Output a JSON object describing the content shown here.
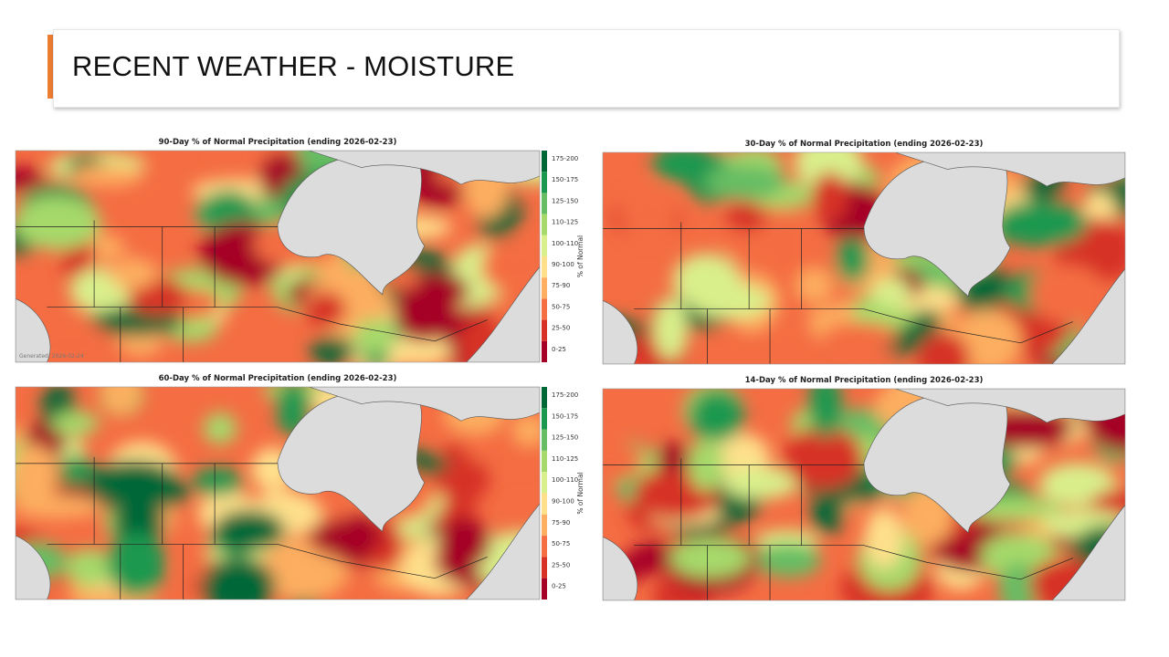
{
  "header": {
    "title": "RECENT WEATHER - MOISTURE"
  },
  "maps": [
    {
      "title": "90-Day % of Normal Precipitation (ending 2026-02-23)",
      "generated": "Generated: 2026-02-24"
    },
    {
      "title": "30-Day % of Normal Precipitation (ending 2026-02-23)"
    },
    {
      "title": "60-Day % of Normal Precipitation (ending 2026-02-23)"
    },
    {
      "title": "14-Day % of Normal Precipitation (ending 2026-02-23)"
    }
  ],
  "legend": {
    "label": "% of Normal",
    "classes": [
      {
        "label": "175-200",
        "color": "#006837"
      },
      {
        "label": "150-175",
        "color": "#1a9850"
      },
      {
        "label": "125-150",
        "color": "#66bd63"
      },
      {
        "label": "110-125",
        "color": "#a6d96a"
      },
      {
        "label": "100-110",
        "color": "#d9ef8b"
      },
      {
        "label": "90-100",
        "color": "#fee08b"
      },
      {
        "label": "75-90",
        "color": "#fdae61"
      },
      {
        "label": "50-75",
        "color": "#f46d43"
      },
      {
        "label": "25-50",
        "color": "#d73027"
      },
      {
        "label": "0-25",
        "color": "#a50026"
      }
    ]
  }
}
